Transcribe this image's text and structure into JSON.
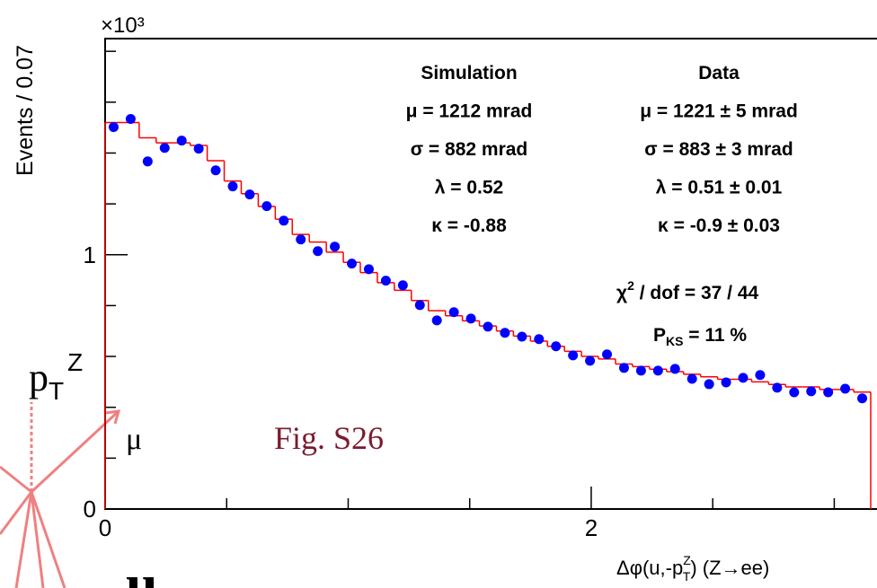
{
  "chart_data": {
    "type": "scatter",
    "y_multiplier": "×10³",
    "y_label": "Events / 0.07",
    "x_label": [
      "Δφ(u,-p",
      "Z",
      "T",
      ")  (Z→ee)"
    ],
    "xlim": [
      0,
      3.15
    ],
    "ylim": [
      0,
      1.85
    ],
    "xticks": [
      0,
      2
    ],
    "x_minor_ticks": [
      0.5,
      1,
      1.5,
      2.5,
      3
    ],
    "yticks": [
      0,
      1
    ],
    "y_minor_ticks": [
      0.2,
      0.4,
      0.6,
      0.8,
      1.2,
      1.4,
      1.6,
      1.8
    ],
    "series": [
      {
        "type": "hist",
        "color": "#ff0000",
        "bins": [
          0,
          0.07,
          0.14,
          0.21,
          0.28,
          0.35,
          0.42,
          0.49,
          0.56,
          0.63,
          0.7,
          0.77,
          0.84,
          0.91,
          0.98,
          1.05,
          1.12,
          1.19,
          1.26,
          1.33,
          1.4,
          1.47,
          1.54,
          1.61,
          1.68,
          1.75,
          1.82,
          1.89,
          1.96,
          2.03,
          2.1,
          2.17,
          2.24,
          2.31,
          2.38,
          2.45,
          2.52,
          2.59,
          2.66,
          2.73,
          2.8,
          2.87,
          2.94,
          3.01,
          3.08,
          3.15
        ],
        "values": [
          1.52,
          1.52,
          1.46,
          1.44,
          1.44,
          1.43,
          1.37,
          1.29,
          1.24,
          1.19,
          1.14,
          1.08,
          1.05,
          1.01,
          0.97,
          0.93,
          0.89,
          0.86,
          0.82,
          0.78,
          0.76,
          0.74,
          0.72,
          0.7,
          0.68,
          0.66,
          0.64,
          0.62,
          0.6,
          0.59,
          0.57,
          0.56,
          0.55,
          0.54,
          0.53,
          0.52,
          0.51,
          0.51,
          0.5,
          0.49,
          0.48,
          0.48,
          0.47,
          0.47,
          0.46
        ]
      },
      {
        "type": "scatter",
        "color": "#0000ff",
        "x": [
          0.035,
          0.105,
          0.175,
          0.245,
          0.315,
          0.385,
          0.455,
          0.525,
          0.595,
          0.665,
          0.735,
          0.805,
          0.875,
          0.945,
          1.015,
          1.085,
          1.155,
          1.225,
          1.295,
          1.365,
          1.435,
          1.505,
          1.575,
          1.645,
          1.715,
          1.785,
          1.855,
          1.925,
          1.995,
          2.065,
          2.135,
          2.205,
          2.275,
          2.345,
          2.415,
          2.485,
          2.555,
          2.625,
          2.695,
          2.765,
          2.835,
          2.905,
          2.975,
          3.045,
          3.115
        ],
        "values": [
          1.502,
          1.534,
          1.367,
          1.42,
          1.449,
          1.417,
          1.332,
          1.269,
          1.237,
          1.191,
          1.134,
          1.06,
          1.014,
          1.032,
          0.965,
          0.943,
          0.898,
          0.88,
          0.802,
          0.742,
          0.774,
          0.749,
          0.717,
          0.693,
          0.678,
          0.668,
          0.64,
          0.604,
          0.583,
          0.608,
          0.555,
          0.544,
          0.544,
          0.551,
          0.512,
          0.491,
          0.498,
          0.516,
          0.527,
          0.477,
          0.459,
          0.463,
          0.459,
          0.473,
          0.435
        ]
      }
    ],
    "annotations": {
      "simulation": [
        "Simulation",
        "μ = 1212 mrad",
        "σ = 882 mrad",
        "λ = 0.52",
        "κ = -0.88"
      ],
      "data": [
        "Data",
        "μ = 1221 ± 5 mrad",
        "σ = 883  ± 3 mrad",
        "λ = 0.51 ± 0.01",
        "κ = -0.9 ± 0.03"
      ],
      "chi2": [
        "χ",
        "2",
        " / dof = 37 / 44"
      ],
      "pks": [
        "P",
        "KS",
        " = 11 %"
      ]
    }
  },
  "overlay": {
    "pt": [
      "p",
      "T",
      "Z"
    ],
    "mu": "μ",
    "figure": "Fig. S26",
    "u": "u"
  }
}
